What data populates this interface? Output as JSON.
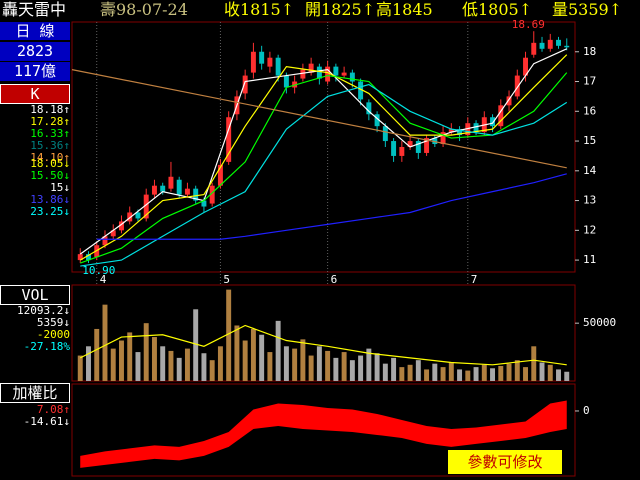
{
  "header": {
    "name": "轟天雷中",
    "date": "壽98-07-24",
    "close": "收1815↑",
    "open": "開1825↑",
    "high": "高1845",
    "low": "低1805↑",
    "volume": "量5359↑"
  },
  "sidebar": {
    "period": "日 線",
    "code": "2823",
    "amount": "117億",
    "k_label": "K",
    "ma_values": [
      {
        "text": "18.18↑",
        "color": "#ffffff"
      },
      {
        "text": "17.28↑",
        "color": "#ffff00"
      },
      {
        "text": "16.33↑",
        "color": "#00ff00"
      },
      {
        "text": "15.36↑",
        "color": "#008080"
      },
      {
        "text": "14.10↑",
        "color": "#ffa040"
      }
    ],
    "ma_values2": [
      {
        "text": "18.05↓",
        "color": "#ffff00"
      },
      {
        "text": "15.50↓",
        "color": "#00ff00"
      },
      {
        "text": "15↓",
        "color": "#ffffff"
      },
      {
        "text": "13.86↓",
        "color": "#4040ff"
      },
      {
        "text": "23.25↓",
        "color": "#00ffff"
      }
    ],
    "vol_label": "VOL",
    "vol_values": [
      {
        "text": "12093.2↓",
        "color": "#ffffff"
      },
      {
        "text": "5359↓",
        "color": "#ffffff"
      },
      {
        "text": "-2000",
        "color": "#ffff00"
      },
      {
        "text": "-27.18%",
        "color": "#00ffff"
      }
    ],
    "ratio_label": "加權比",
    "ratio_values": [
      {
        "text": "7.08↑",
        "color": "#ff3030"
      },
      {
        "text": "-14.61↓",
        "color": "#ffffff"
      }
    ]
  },
  "button": "參數可修改",
  "chart_data": [
    {
      "type": "candlestick",
      "ylim": [
        10.6,
        19.0
      ],
      "yticks": [
        11,
        12,
        13,
        14,
        15,
        16,
        17,
        18
      ],
      "xlim": [
        -1,
        60
      ],
      "xticks": [
        {
          "value": 2,
          "label": "4"
        },
        {
          "value": 17,
          "label": "5"
        },
        {
          "value": 30,
          "label": "6"
        },
        {
          "value": 47,
          "label": "7"
        }
      ],
      "up_color": "#ff3030",
      "down_color": "#00c0c0",
      "open": [
        11.0,
        11.2,
        11.1,
        11.5,
        11.8,
        12.0,
        12.3,
        12.6,
        12.4,
        13.2,
        13.5,
        13.4,
        13.7,
        13.2,
        13.4,
        13.0,
        12.9,
        13.5,
        14.3,
        15.9,
        16.6,
        17.3,
        18.0,
        17.5,
        17.8,
        17.2,
        16.8,
        17.1,
        17.3,
        17.5,
        17.0,
        17.5,
        17.2,
        17.3,
        17.0,
        16.3,
        15.9,
        15.5,
        15.0,
        14.5,
        14.8,
        15.0,
        14.6,
        15.1,
        14.9,
        15.3,
        15.4,
        15.2,
        15.6,
        15.3,
        15.8,
        15.5,
        16.2,
        16.5,
        17.2,
        17.9,
        18.3,
        18.1,
        18.4,
        18.2
      ],
      "high": [
        11.4,
        11.3,
        11.6,
        12.0,
        12.2,
        12.5,
        12.8,
        12.7,
        13.4,
        13.7,
        13.6,
        14.3,
        13.8,
        13.6,
        13.5,
        13.1,
        13.6,
        14.4,
        16.0,
        16.7,
        17.4,
        18.3,
        18.2,
        18.0,
        17.9,
        17.3,
        17.2,
        17.6,
        17.8,
        17.6,
        17.7,
        17.6,
        17.5,
        17.4,
        17.1,
        16.4,
        16.0,
        15.6,
        15.1,
        15.0,
        15.2,
        15.1,
        15.2,
        15.2,
        15.5,
        15.6,
        15.5,
        15.8,
        15.7,
        16.0,
        15.9,
        16.4,
        16.7,
        17.4,
        18.0,
        18.69,
        18.5,
        18.6,
        18.5,
        18.45
      ],
      "low": [
        10.9,
        10.9,
        11.0,
        11.4,
        11.7,
        11.9,
        12.2,
        12.3,
        12.3,
        13.1,
        13.2,
        13.3,
        13.1,
        13.1,
        12.9,
        12.6,
        12.8,
        13.4,
        14.2,
        15.7,
        16.4,
        17.1,
        17.4,
        17.3,
        17.0,
        16.6,
        16.6,
        17.0,
        17.2,
        16.9,
        16.9,
        17.0,
        17.1,
        16.8,
        16.2,
        15.7,
        15.3,
        14.8,
        14.3,
        14.3,
        14.7,
        14.4,
        14.5,
        14.8,
        14.8,
        15.2,
        15.0,
        15.1,
        15.2,
        15.2,
        15.3,
        15.4,
        16.0,
        16.4,
        17.0,
        17.8,
        18.0,
        18.0,
        18.1,
        18.05
      ],
      "close": [
        11.2,
        11.0,
        11.5,
        11.8,
        12.0,
        12.3,
        12.6,
        12.4,
        13.2,
        13.5,
        13.3,
        13.8,
        13.2,
        13.4,
        13.0,
        12.8,
        13.5,
        14.2,
        15.8,
        16.5,
        17.2,
        18.0,
        17.6,
        17.8,
        17.2,
        16.8,
        17.0,
        17.4,
        17.6,
        17.1,
        17.5,
        17.2,
        17.3,
        17.0,
        16.4,
        15.9,
        15.5,
        15.0,
        14.5,
        14.8,
        15.0,
        14.6,
        15.1,
        14.9,
        15.3,
        15.4,
        15.2,
        15.6,
        15.3,
        15.8,
        15.5,
        16.2,
        16.5,
        17.2,
        17.8,
        18.3,
        18.1,
        18.4,
        18.2,
        18.15
      ],
      "lines": [
        {
          "color": "#ffffff",
          "x": [
            0,
            5,
            10,
            15,
            20,
            25,
            30,
            35,
            40,
            45,
            50,
            55,
            59
          ],
          "values": [
            11.2,
            12.2,
            13.3,
            13.0,
            17.0,
            17.2,
            17.4,
            16.0,
            14.8,
            15.3,
            15.6,
            17.6,
            18.1
          ]
        },
        {
          "color": "#ffff00",
          "x": [
            0,
            5,
            10,
            15,
            20,
            25,
            30,
            35,
            40,
            45,
            50,
            55,
            59
          ],
          "values": [
            11.0,
            11.8,
            13.0,
            13.2,
            15.5,
            17.5,
            17.3,
            16.6,
            15.2,
            15.2,
            15.4,
            16.8,
            17.9
          ]
        },
        {
          "color": "#00ff00",
          "x": [
            0,
            5,
            10,
            15,
            20,
            25,
            30,
            35,
            40,
            45,
            50,
            55,
            59
          ],
          "values": [
            10.9,
            11.4,
            12.4,
            13.0,
            14.3,
            16.8,
            17.2,
            17.0,
            15.6,
            15.1,
            15.2,
            16.0,
            17.3
          ]
        },
        {
          "color": "#00e0e0",
          "x": [
            0,
            5,
            10,
            15,
            20,
            25,
            30,
            35,
            40,
            45,
            50,
            55,
            59
          ],
          "values": [
            10.8,
            11.0,
            11.8,
            12.6,
            13.3,
            15.4,
            16.5,
            16.9,
            16.0,
            15.4,
            15.2,
            15.6,
            16.3
          ]
        },
        {
          "color": "#2020ff",
          "x": [
            2,
            8,
            14,
            17,
            20,
            25,
            30,
            35,
            40,
            45,
            50,
            55,
            59
          ],
          "values": [
            11.7,
            11.7,
            11.7,
            11.7,
            11.8,
            12.0,
            12.2,
            12.4,
            12.6,
            13.0,
            13.3,
            13.6,
            13.9
          ]
        },
        {
          "color": "#c08040",
          "x": [
            -1,
            59
          ],
          "values": [
            17.4,
            14.1
          ]
        }
      ],
      "annotations": [
        {
          "text": "18.69",
          "x": 55,
          "y": 18.69,
          "color": "#ff3030"
        },
        {
          "text": "10.90",
          "x": 0,
          "y": 10.9,
          "color": "#00ffff"
        }
      ]
    },
    {
      "type": "bar",
      "ylim": [
        0,
        83000
      ],
      "yticks": [
        50000
      ],
      "xlim": [
        -1,
        60
      ],
      "up_color": "#b08040",
      "down_color": "#a8a8a8",
      "values": [
        22000,
        30000,
        45000,
        66000,
        28000,
        35000,
        42000,
        25000,
        50000,
        38000,
        30000,
        26000,
        20000,
        28000,
        62000,
        24000,
        18000,
        30000,
        79000,
        48000,
        35000,
        45000,
        40000,
        25000,
        52000,
        30000,
        28000,
        36000,
        22000,
        30000,
        26000,
        20000,
        25000,
        18000,
        22000,
        28000,
        24000,
        15000,
        20000,
        12000,
        14000,
        18000,
        10000,
        15000,
        12000,
        16000,
        10000,
        9000,
        12000,
        14000,
        11000,
        13000,
        15000,
        18000,
        12000,
        30000,
        16000,
        14000,
        10000,
        8000
      ],
      "lines": [
        {
          "color": "#ffff00",
          "x": [
            0,
            5,
            10,
            15,
            20,
            25,
            30,
            35,
            40,
            45,
            50,
            55,
            59
          ],
          "values": [
            20000,
            38000,
            40000,
            30000,
            48000,
            35000,
            30000,
            24000,
            20000,
            16000,
            14000,
            18000,
            14000
          ]
        }
      ]
    },
    {
      "type": "area",
      "ylim": [
        -21.7,
        9
      ],
      "yticks": [
        0
      ],
      "xlim": [
        -1,
        60
      ],
      "color": "#ff0000",
      "x": [
        0,
        3,
        6,
        9,
        12,
        15,
        18,
        21,
        24,
        27,
        30,
        33,
        36,
        39,
        42,
        45,
        48,
        51,
        54,
        57,
        59
      ],
      "upper": [
        -15,
        -13.5,
        -12.5,
        -11.5,
        -12,
        -10,
        -7,
        0.5,
        2.5,
        2,
        1,
        0.5,
        -1,
        -3,
        -5,
        -6,
        -5.5,
        -4.5,
        -3.5,
        2.5,
        3.5
      ],
      "lower": [
        -19,
        -18,
        -17,
        -16,
        -16.5,
        -15,
        -12,
        -6,
        -5,
        -6,
        -6.5,
        -7,
        -8,
        -9,
        -11,
        -12,
        -11,
        -10,
        -9,
        -7,
        -6
      ]
    }
  ]
}
